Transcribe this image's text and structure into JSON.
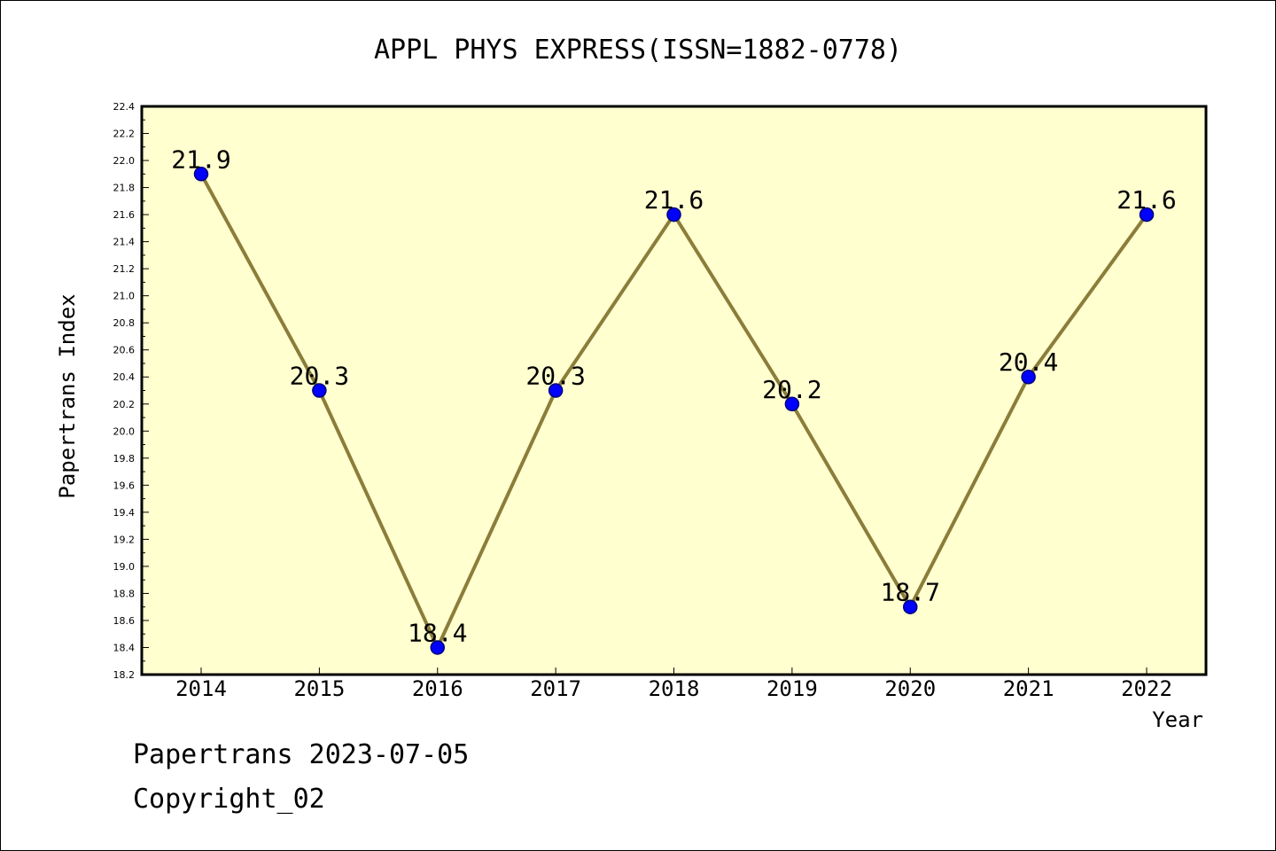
{
  "chart_data": {
    "type": "line",
    "title": "APPL PHYS EXPRESS(ISSN=1882-0778)",
    "xlabel": "Year",
    "ylabel": "Papertrans Index",
    "categories": [
      "2014",
      "2015",
      "2016",
      "2017",
      "2018",
      "2019",
      "2020",
      "2021",
      "2022"
    ],
    "series": [
      {
        "values": [
          21.9,
          20.3,
          18.4,
          20.3,
          21.6,
          20.2,
          18.7,
          20.4,
          21.6
        ],
        "data_labels": [
          "21.9",
          "20.3",
          "18.4",
          "20.3",
          "21.6",
          "20.2",
          "18.7",
          "20.4",
          "21.6"
        ]
      }
    ],
    "ylim": [
      18.2,
      22.4
    ],
    "yticks": [
      "18.2",
      "18.4",
      "18.6",
      "18.8",
      "19.0",
      "19.2",
      "19.4",
      "19.6",
      "19.8",
      "20.0",
      "20.2",
      "20.4",
      "20.6",
      "20.8",
      "21.0",
      "21.2",
      "21.4",
      "21.6",
      "21.8",
      "22.0",
      "22.2",
      "22.4"
    ],
    "grid": false,
    "legend": "none",
    "colors": {
      "plot_background": "#ffffd0",
      "line": "#8b7d3a",
      "marker_fill": "#0000ff",
      "marker_edge": "#00007a"
    }
  },
  "footer": {
    "line1": "Papertrans 2023-07-05",
    "line2": "Copyright_02"
  }
}
